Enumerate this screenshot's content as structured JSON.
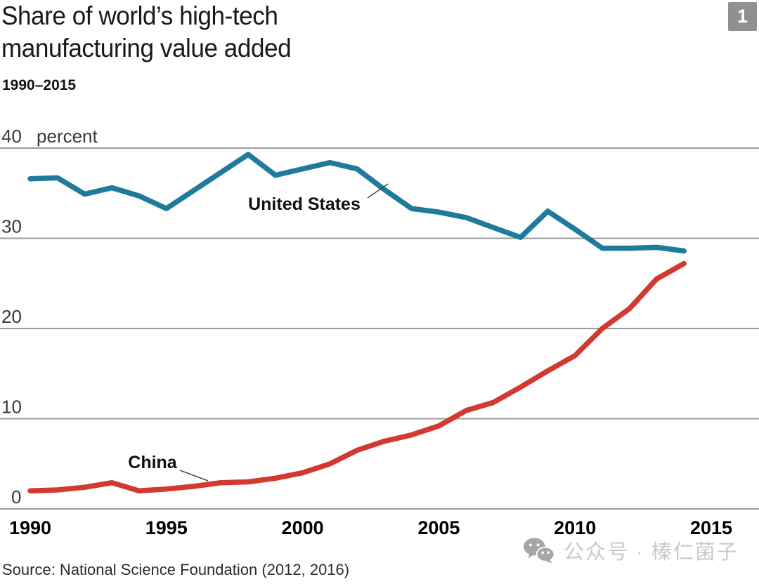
{
  "page": {
    "badge": "1",
    "title_lines": [
      "Share of world’s high-tech",
      "manufacturing value added"
    ],
    "subtitle": "1990–2015",
    "source": "Source: National Science Foundation (2012, 2016)",
    "watermark": {
      "icon": "wechat-icon",
      "text": "公众号 · 榛仁菌子"
    }
  },
  "chart_data": {
    "type": "line",
    "title": "Share of world’s high-tech manufacturing value added",
    "subtitle": "1990–2015",
    "ylabel": "percent",
    "xlabel": "",
    "x": [
      1990,
      1991,
      1992,
      1993,
      1994,
      1995,
      1996,
      1997,
      1998,
      1999,
      2000,
      2001,
      2002,
      2003,
      2004,
      2005,
      2006,
      2007,
      2008,
      2009,
      2010,
      2011,
      2012,
      2013,
      2014
    ],
    "series": [
      {
        "name": "United States",
        "color": "#1e7b9c",
        "values": [
          36.6,
          36.7,
          34.9,
          35.6,
          34.7,
          33.3,
          35.3,
          37.3,
          39.3,
          37.0,
          37.7,
          38.4,
          37.7,
          35.4,
          33.3,
          32.9,
          32.3,
          31.2,
          30.1,
          33.0,
          31.0,
          28.9,
          28.9,
          29.0,
          28.6
        ]
      },
      {
        "name": "China",
        "color": "#d23a31",
        "values": [
          2.0,
          2.1,
          2.4,
          2.9,
          2.0,
          2.2,
          2.5,
          2.9,
          3.0,
          3.4,
          4.0,
          5.0,
          6.5,
          7.5,
          8.2,
          9.2,
          10.9,
          11.8,
          13.5,
          15.3,
          17.0,
          20.0,
          22.2,
          25.5,
          27.2
        ]
      }
    ],
    "xticks": [
      1990,
      1995,
      2000,
      2005,
      2010,
      2015
    ],
    "yticks": [
      40,
      30,
      20,
      10,
      0
    ],
    "xlim": [
      1990,
      2015
    ],
    "ylim": [
      0,
      40
    ],
    "grid": "horizontal",
    "grid_color": "#9b9b9b",
    "legend": "inline-labels",
    "source": "Source: National Science Foundation (2012, 2016)"
  }
}
